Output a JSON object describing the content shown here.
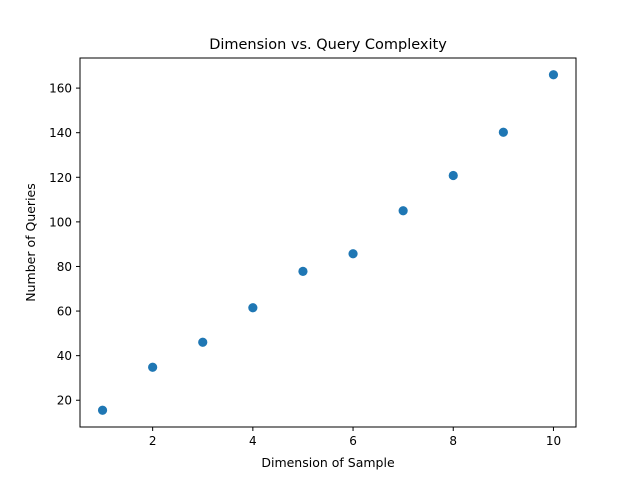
{
  "chart_data": {
    "type": "scatter",
    "title": "Dimension vs. Query Complexity",
    "xlabel": "Dimension of Sample",
    "ylabel": "Number of Queries",
    "x": [
      1,
      2,
      3,
      4,
      5,
      6,
      7,
      8,
      9,
      10
    ],
    "y": [
      15.5,
      34.8,
      46,
      61.5,
      77.8,
      85.7,
      105,
      120.8,
      140.2,
      166
    ],
    "xlim": [
      0.55,
      10.45
    ],
    "ylim": [
      8.0,
      173.5
    ],
    "xticks": [
      2,
      4,
      6,
      8,
      10
    ],
    "yticks": [
      20,
      40,
      60,
      80,
      100,
      120,
      140,
      160
    ],
    "grid": false,
    "marker_color": "#1f77b4"
  }
}
